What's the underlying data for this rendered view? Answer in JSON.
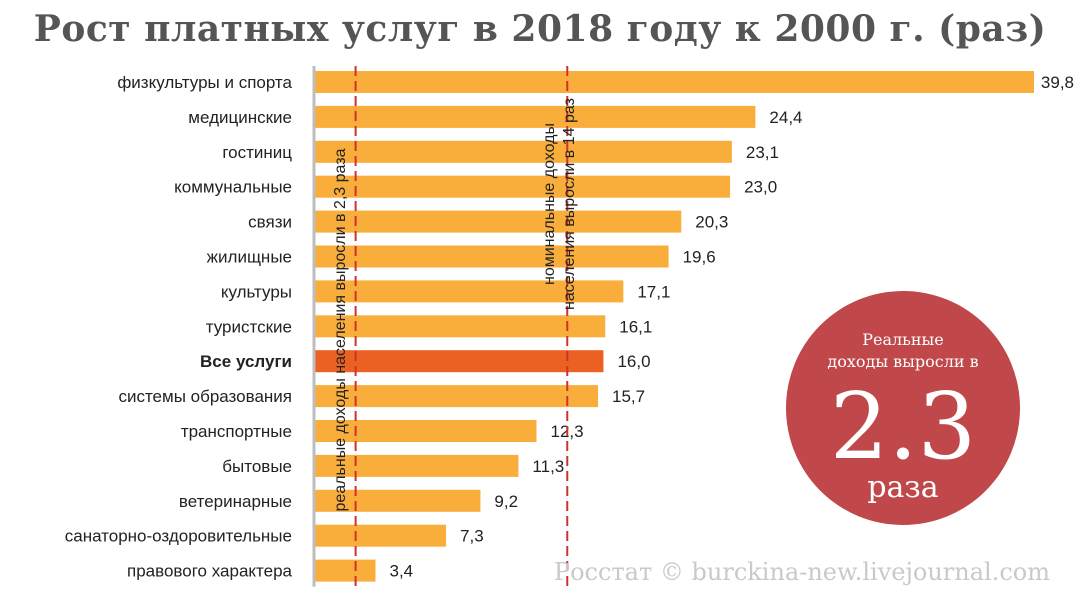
{
  "title": "Рост платных услуг в 2018 году к 2000 г. (раз)",
  "chart_data": {
    "type": "bar",
    "orientation": "horizontal",
    "categories": [
      "физкультуры и спорта",
      "медицинские",
      "гостиниц",
      "коммунальные",
      "связи",
      "жилищные",
      "культуры",
      "туристские",
      "Все услуги",
      "системы образования",
      "транспортные",
      "бытовые",
      "ветеринарные",
      "санаторно-оздоровительные",
      "правового характера"
    ],
    "values": [
      39.8,
      24.4,
      23.1,
      23.0,
      20.3,
      19.6,
      17.1,
      16.1,
      16.0,
      15.7,
      12.3,
      11.3,
      9.2,
      7.3,
      3.4
    ],
    "value_labels": [
      "39,8",
      "24,4",
      "23,1",
      "23,0",
      "20,3",
      "19,6",
      "17,1",
      "16,1",
      "16,0",
      "15,7",
      "12,3",
      "11,3",
      "9,2",
      "7,3",
      "3,4"
    ],
    "highlight_category": "Все услуги",
    "xlim": [
      0,
      39.8
    ],
    "grid": false,
    "colors": {
      "bar": "#F9AE3B",
      "highlight": "#EB6123",
      "reference_line": "#D0312D"
    },
    "reference_lines": [
      {
        "value": 2.3,
        "label": "реальные доходы населения выросли в 2,3 раза"
      },
      {
        "value": 14,
        "label": "номинальные доходы населения выросли в 14 раз"
      }
    ]
  },
  "badge": {
    "caption_line1": "Реальные",
    "caption_line2": "доходы выросли в",
    "value": "2.3",
    "unit": "раза",
    "color": "#C0474A"
  },
  "source": "Росстат © burckina-new.livejournal.com"
}
